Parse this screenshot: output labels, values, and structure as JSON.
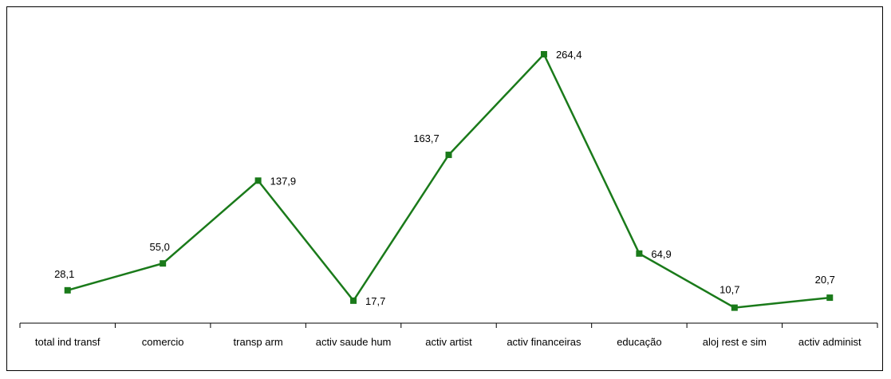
{
  "chart_data": {
    "type": "line",
    "title": "",
    "xlabel": "",
    "ylabel": "",
    "categories": [
      "total ind transf",
      "comercio",
      "transp arm",
      "activ saude hum",
      "activ artist",
      "activ financeiras",
      "educação",
      "aloj rest e sim",
      "activ administ"
    ],
    "series": [
      {
        "values": [
          28.1,
          55.0,
          137.9,
          17.7,
          163.7,
          264.4,
          64.9,
          10.7,
          20.7
        ],
        "value_labels": [
          "28,1",
          "55,0",
          "137,9",
          "17,7",
          "163,7",
          "264,4",
          "64,9",
          "10,7",
          "20,7"
        ],
        "color": "#1a7a1a"
      }
    ],
    "ylim": [
      0,
      264.4
    ],
    "grid": false,
    "legend": "none"
  }
}
